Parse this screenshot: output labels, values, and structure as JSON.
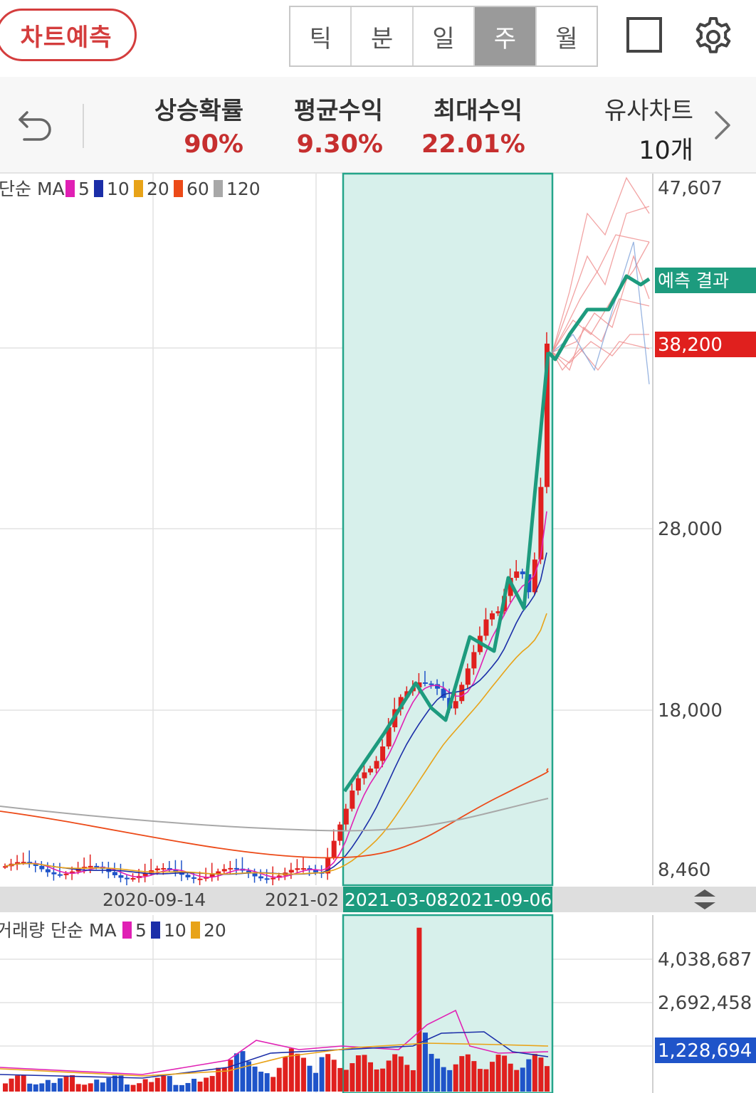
{
  "header": {
    "predict_button": "차트예측",
    "tabs": [
      {
        "label": "틱",
        "active": false
      },
      {
        "label": "분",
        "active": false
      },
      {
        "label": "일",
        "active": false
      },
      {
        "label": "주",
        "active": true
      },
      {
        "label": "월",
        "active": false
      }
    ]
  },
  "stats": [
    {
      "label": "상승확률",
      "value": "90%"
    },
    {
      "label": "평균수익",
      "value": "9.30%"
    },
    {
      "label": "최대수익",
      "value": "22.01%"
    },
    {
      "label": "유사차트",
      "value": "10개"
    }
  ],
  "price_panel": {
    "legend_prefix": "단순 MA",
    "legend_items": [
      {
        "label": "5",
        "color": "#e020b4"
      },
      {
        "label": "10",
        "color": "#1b2ea8"
      },
      {
        "label": "20",
        "color": "#e8a318"
      },
      {
        "label": "60",
        "color": "#ec4a18"
      },
      {
        "label": "120",
        "color": "#a8a8a8"
      }
    ],
    "y_labels": [
      "47,607",
      "28,000",
      "18,000",
      "8,460"
    ],
    "predict_tag": "예측 결과",
    "current_price_tag": "38,200"
  },
  "date_axis": {
    "labels": [
      "2020-09-14",
      "2021-02",
      "2021-03-08",
      "2021-09-06"
    ]
  },
  "volume_panel": {
    "legend_prefix": "거래량 단순 MA",
    "legend_items": [
      {
        "label": "5",
        "color": "#e020b4"
      },
      {
        "label": "10",
        "color": "#1b2ea8"
      },
      {
        "label": "20",
        "color": "#e8a318"
      }
    ],
    "y_labels": [
      "4,038,687",
      "2,692,458"
    ],
    "current_volume_tag": "1,228,694"
  },
  "chart_data": {
    "type": "candlestick",
    "y_axis_labels": [
      47607,
      28000,
      18000,
      8460
    ],
    "current_price": 38200,
    "highlight_range": [
      "2021-03-08",
      "2021-09-06"
    ],
    "x_labels": [
      "2020-09-14",
      "2021-02",
      "2021-03-08",
      "2021-09-06"
    ],
    "moving_averages": [
      "5",
      "10",
      "20",
      "60",
      "120"
    ],
    "prediction": {
      "label": "예측 결과",
      "similar_charts": 10,
      "rise_probability": "90%",
      "avg_return": "9.30%",
      "max_return": "22.01%"
    },
    "volume_axis_labels": [
      4038687,
      2692458
    ],
    "current_volume": 1228694
  }
}
